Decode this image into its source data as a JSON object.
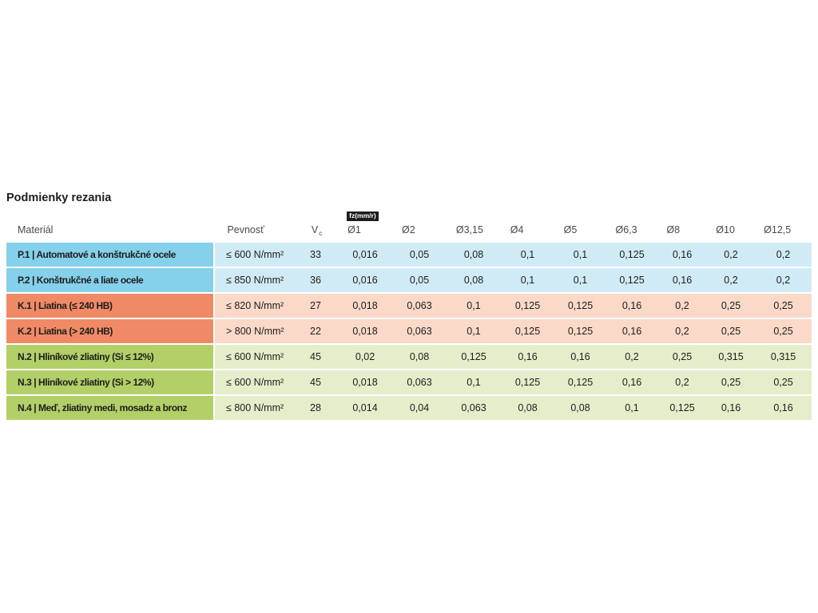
{
  "title": "Podmienky rezania",
  "colors": {
    "text": "#1d1d1b",
    "header_text": "#4a4a49",
    "badge_bg": "#1d1d1b",
    "badge_text": "#ffffff",
    "groups": {
      "P": {
        "solid": "#85d0ea",
        "tint": "#d0ebf6"
      },
      "K": {
        "solid": "#f08a66",
        "tint": "#fad9c9"
      },
      "N": {
        "solid": "#b3cf68",
        "tint": "#e5edca"
      }
    }
  },
  "table": {
    "headers": {
      "material": "Materiál",
      "strength": "Pevnosť",
      "vc_main": "V",
      "vc_sub": "c",
      "fz_badge": "fz(mm/r)",
      "diameters": [
        "Ø1",
        "Ø2",
        "Ø3,15",
        "Ø4",
        "Ø5",
        "Ø6,3",
        "Ø8",
        "Ø10",
        "Ø12,5"
      ]
    },
    "rows": [
      {
        "group": "P",
        "material": "P.1 | Automatové a konštrukčné ocele",
        "strength": "≤ 600 N/mm²",
        "vc": "33",
        "fz": [
          "0,016",
          "0,05",
          "0,08",
          "0,1",
          "0,1",
          "0,125",
          "0,16",
          "0,2",
          "0,2"
        ]
      },
      {
        "group": "P",
        "material": "P.2 | Konštrukčné a liate ocele",
        "strength": "≤ 850 N/mm²",
        "vc": "36",
        "fz": [
          "0,016",
          "0,05",
          "0,08",
          "0,1",
          "0,1",
          "0,125",
          "0,16",
          "0,2",
          "0,2"
        ]
      },
      {
        "group": "K",
        "material": "K.1 | Liatina (≤ 240 HB)",
        "strength": "≤ 820 N/mm²",
        "vc": "27",
        "fz": [
          "0,018",
          "0,063",
          "0,1",
          "0,125",
          "0,125",
          "0,16",
          "0,2",
          "0,25",
          "0,25"
        ]
      },
      {
        "group": "K",
        "material": "K.2 | Liatina (> 240 HB)",
        "strength": "> 800 N/mm²",
        "vc": "22",
        "fz": [
          "0,018",
          "0,063",
          "0,1",
          "0,125",
          "0,125",
          "0,16",
          "0,2",
          "0,25",
          "0,25"
        ]
      },
      {
        "group": "N",
        "material": "N.2 | Hliníkové zliatiny (Si ≤ 12%)",
        "strength": "≤ 600 N/mm²",
        "vc": "45",
        "fz": [
          "0,02",
          "0,08",
          "0,125",
          "0,16",
          "0,16",
          "0,2",
          "0,25",
          "0,315",
          "0,315"
        ]
      },
      {
        "group": "N",
        "material": "N.3 | Hliníkové zliatiny (Si > 12%)",
        "strength": "≤ 600 N/mm²",
        "vc": "45",
        "fz": [
          "0,018",
          "0,063",
          "0,1",
          "0,125",
          "0,125",
          "0,16",
          "0,2",
          "0,25",
          "0,25"
        ]
      },
      {
        "group": "N",
        "material": "N.4 | Meď, zliatiny medi, mosadz a bronz",
        "strength": "≤ 800 N/mm²",
        "vc": "28",
        "fz": [
          "0,014",
          "0,04",
          "0,063",
          "0,08",
          "0,08",
          "0,1",
          "0,125",
          "0,16",
          "0,16"
        ]
      }
    ]
  },
  "chart_data": {
    "type": "table",
    "title": "Podmienky rezania",
    "unit_note": "fz(mm/r)",
    "columns": [
      "Materiál",
      "Pevnosť",
      "Vc",
      "Ø1",
      "Ø2",
      "Ø3,15",
      "Ø4",
      "Ø5",
      "Ø6,3",
      "Ø8",
      "Ø10",
      "Ø12,5"
    ],
    "rows": [
      [
        "P.1 | Automatové a konštrukčné ocele",
        "≤ 600 N/mm²",
        "33",
        "0,016",
        "0,05",
        "0,08",
        "0,1",
        "0,1",
        "0,125",
        "0,16",
        "0,2",
        "0,2"
      ],
      [
        "P.2 | Konštrukčné a liate ocele",
        "≤ 850 N/mm²",
        "36",
        "0,016",
        "0,05",
        "0,08",
        "0,1",
        "0,1",
        "0,125",
        "0,16",
        "0,2",
        "0,2"
      ],
      [
        "K.1 | Liatina (≤ 240 HB)",
        "≤ 820 N/mm²",
        "27",
        "0,018",
        "0,063",
        "0,1",
        "0,125",
        "0,125",
        "0,16",
        "0,2",
        "0,25",
        "0,25"
      ],
      [
        "K.2 | Liatina (> 240 HB)",
        "> 800 N/mm²",
        "22",
        "0,018",
        "0,063",
        "0,1",
        "0,125",
        "0,125",
        "0,16",
        "0,2",
        "0,25",
        "0,25"
      ],
      [
        "N.2 | Hliníkové zliatiny (Si ≤ 12%)",
        "≤ 600 N/mm²",
        "45",
        "0,02",
        "0,08",
        "0,125",
        "0,16",
        "0,16",
        "0,2",
        "0,25",
        "0,315",
        "0,315"
      ],
      [
        "N.3 | Hliníkové zliatiny (Si > 12%)",
        "≤ 600 N/mm²",
        "45",
        "0,018",
        "0,063",
        "0,1",
        "0,125",
        "0,125",
        "0,16",
        "0,2",
        "0,25",
        "0,25"
      ],
      [
        "N.4 | Meď, zliatiny medi, mosadz a bronz",
        "≤ 800 N/mm²",
        "28",
        "0,014",
        "0,04",
        "0,063",
        "0,08",
        "0,08",
        "0,1",
        "0,125",
        "0,16",
        "0,16"
      ]
    ]
  }
}
